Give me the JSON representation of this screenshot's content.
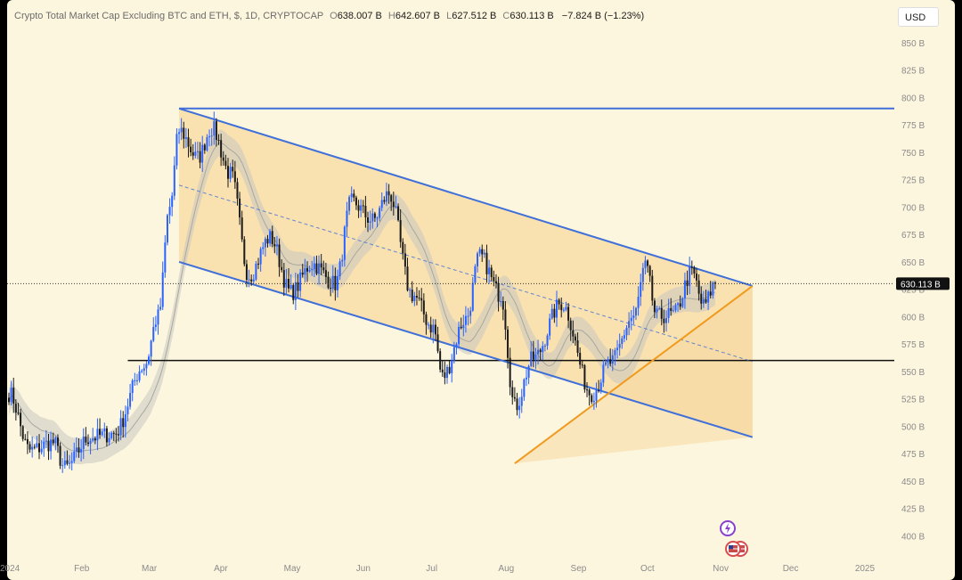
{
  "legend": {
    "symbol": "Crypto Total Market Cap Excluding BTC and ETH, $, 1D, CRYPTOCAP",
    "open_key": "O",
    "open": "638.007 B",
    "high_key": "H",
    "high": "642.607 B",
    "low_key": "L",
    "low": "627.512 B",
    "close_key": "C",
    "close": "630.113 B",
    "change": "−7.824 B (−1.23%)"
  },
  "currency_button": "USD",
  "colors": {
    "background": "#fdf6df",
    "up_candle": "#2962ff",
    "down_candle": "#1a1a1a",
    "channel_line": "#3f6fd8",
    "channel_fill": "#f7d9a0",
    "support_line": "#f09a1e",
    "horizontal_line": "#111111",
    "moving_average_band": "#c9c9c0"
  },
  "icons": [
    "lightning-event-icon",
    "us-flag-event-icon"
  ],
  "chart_data": {
    "type": "candlestick",
    "title": "Crypto Total Market Cap Excluding BTC and ETH, $, 1D, CRYPTOCAP",
    "y_unit": "B",
    "ylim": [
      375,
      865
    ],
    "y_ticks": [
      "850 B",
      "825 B",
      "800 B",
      "775 B",
      "750 B",
      "725 B",
      "700 B",
      "675 B",
      "650 B",
      "625 B",
      "600 B",
      "575 B",
      "550 B",
      "525 B",
      "500 B",
      "475 B",
      "450 B",
      "425 B",
      "400 B"
    ],
    "x_ticks": [
      "2024",
      "Feb",
      "Mar",
      "Apr",
      "May",
      "Jun",
      "Jul",
      "Aug",
      "Sep",
      "Oct",
      "Nov",
      "Dec",
      "2025"
    ],
    "last_price": "630.113 B",
    "last_value": 630.113,
    "anchors": [
      {
        "date": "2024-01-01",
        "value": 530
      },
      {
        "date": "2024-01-10",
        "value": 478
      },
      {
        "date": "2024-01-20",
        "value": 485
      },
      {
        "date": "2024-01-25",
        "value": 462
      },
      {
        "date": "2024-02-05",
        "value": 490
      },
      {
        "date": "2024-02-15",
        "value": 493
      },
      {
        "date": "2024-02-28",
        "value": 555
      },
      {
        "date": "2024-03-05",
        "value": 600
      },
      {
        "date": "2024-03-10",
        "value": 700
      },
      {
        "date": "2024-03-14",
        "value": 770
      },
      {
        "date": "2024-03-22",
        "value": 745
      },
      {
        "date": "2024-03-28",
        "value": 772
      },
      {
        "date": "2024-04-05",
        "value": 730
      },
      {
        "date": "2024-04-13",
        "value": 638
      },
      {
        "date": "2024-04-22",
        "value": 672
      },
      {
        "date": "2024-05-01",
        "value": 622
      },
      {
        "date": "2024-05-10",
        "value": 648
      },
      {
        "date": "2024-05-20",
        "value": 630
      },
      {
        "date": "2024-05-27",
        "value": 705
      },
      {
        "date": "2024-06-05",
        "value": 688
      },
      {
        "date": "2024-06-12",
        "value": 712
      },
      {
        "date": "2024-06-22",
        "value": 620
      },
      {
        "date": "2024-07-01",
        "value": 590
      },
      {
        "date": "2024-07-05",
        "value": 545
      },
      {
        "date": "2024-07-15",
        "value": 598
      },
      {
        "date": "2024-07-21",
        "value": 655
      },
      {
        "date": "2024-07-30",
        "value": 620
      },
      {
        "date": "2024-08-05",
        "value": 518
      },
      {
        "date": "2024-08-13",
        "value": 562
      },
      {
        "date": "2024-08-25",
        "value": 612
      },
      {
        "date": "2024-09-07",
        "value": 530
      },
      {
        "date": "2024-09-15",
        "value": 558
      },
      {
        "date": "2024-09-25",
        "value": 600
      },
      {
        "date": "2024-09-30",
        "value": 645
      },
      {
        "date": "2024-10-05",
        "value": 600
      },
      {
        "date": "2024-10-12",
        "value": 602
      },
      {
        "date": "2024-10-20",
        "value": 640
      },
      {
        "date": "2024-10-25",
        "value": 610
      },
      {
        "date": "2024-10-30",
        "value": 630
      }
    ],
    "drawings": {
      "channel_upper": [
        {
          "date": "2024-03-14",
          "value": 790
        },
        {
          "date": "2024-11-15",
          "value": 628
        }
      ],
      "channel_lower": [
        {
          "date": "2024-03-14",
          "value": 650
        },
        {
          "date": "2024-11-15",
          "value": 490
        }
      ],
      "channel_mid": [
        {
          "date": "2024-03-14",
          "value": 720
        },
        {
          "date": "2024-11-15",
          "value": 559
        }
      ],
      "horizontal_resistance": {
        "value": 790,
        "from": "2024-03-14"
      },
      "horizontal_support": {
        "value": 560,
        "from": "2024-02-21"
      },
      "ascending_support": [
        {
          "date": "2024-08-05",
          "value": 466
        },
        {
          "date": "2024-11-15",
          "value": 628
        }
      ]
    }
  }
}
